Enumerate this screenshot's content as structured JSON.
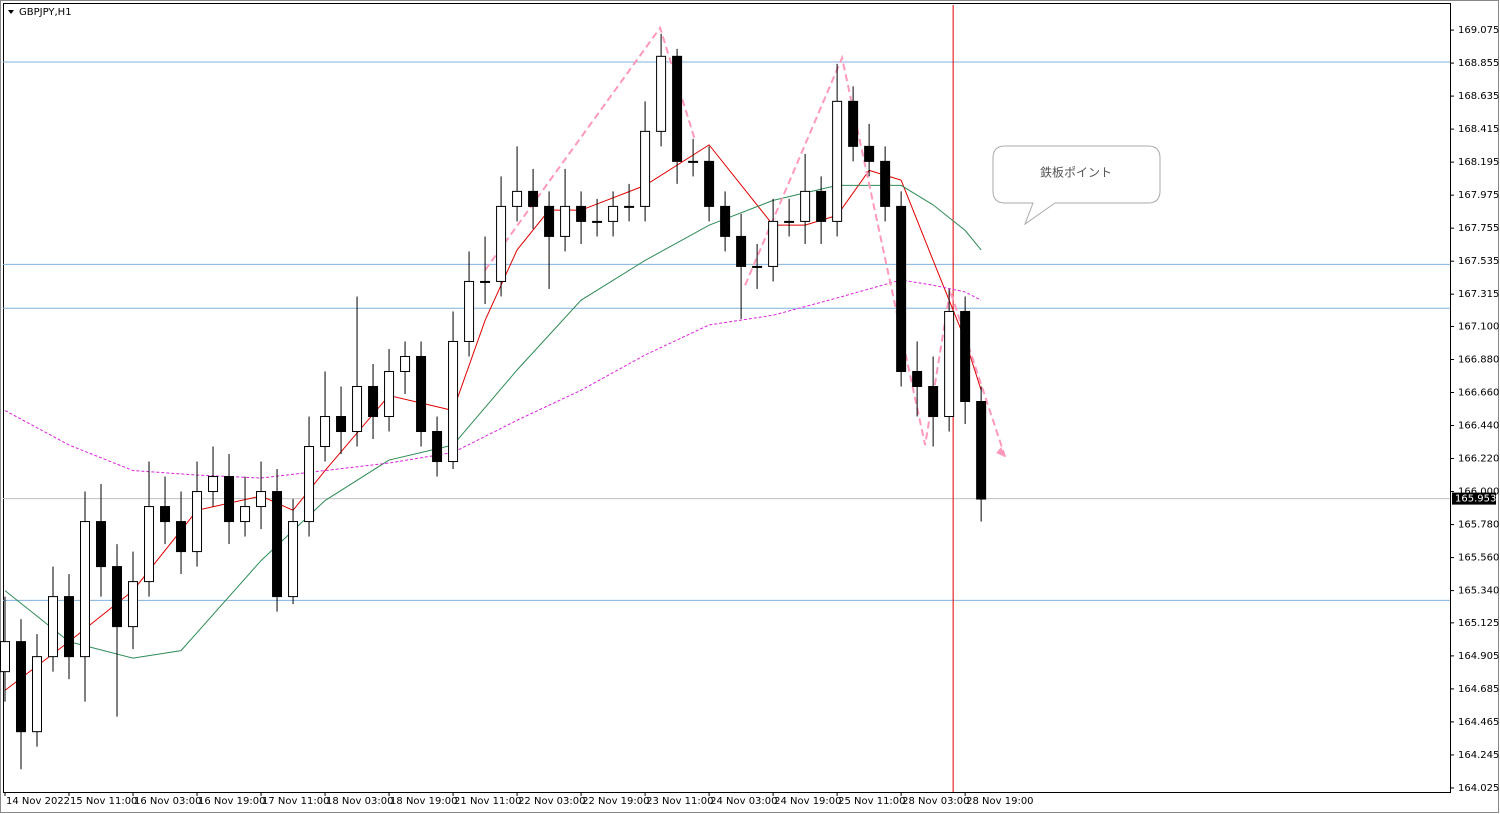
{
  "chart_data": {
    "type": "candlestick",
    "title": "GBPJPY,H1",
    "annotation": "鉄板ポイント",
    "up_color": "#ffffff",
    "down_color": "#000000",
    "xlim": [
      -0.125,
      90.3
    ],
    "ylim": [
      163.998,
      169.242
    ],
    "yticks": [
      164.025,
      164.245,
      164.465,
      164.685,
      164.905,
      165.125,
      {
        "value": 165.34,
        "label": "165.340"
      },
      {
        "value": 165.56,
        "label": "165.560"
      },
      {
        "value": 165.78,
        "label": "165.780"
      },
      {
        "value": 166.0,
        "label": "166.000"
      },
      {
        "value": 166.22,
        "label": "166.220"
      },
      {
        "value": 166.44,
        "label": "166.440"
      },
      {
        "value": 166.66,
        "label": "166.660"
      },
      {
        "value": 166.88,
        "label": "166.880"
      },
      {
        "value": 167.1,
        "label": "167.100"
      },
      167.315,
      167.535,
      167.755,
      167.975,
      168.195,
      168.415,
      168.635,
      168.855,
      169.075
    ],
    "xticks": [
      {
        "value": 0,
        "label": "14 Nov 2022"
      },
      {
        "value": 4,
        "label": "15 Nov 11:00"
      },
      {
        "value": 8,
        "label": "16 Nov 03:00"
      },
      {
        "value": 12,
        "label": "16 Nov 19:00"
      },
      {
        "value": 16,
        "label": "17 Nov 11:00"
      },
      {
        "value": 20,
        "label": "18 Nov 03:00"
      },
      {
        "value": 24,
        "label": "18 Nov 19:00"
      },
      {
        "value": 28,
        "label": "21 Nov 11:00"
      },
      {
        "value": 32,
        "label": "22 Nov 03:00"
      },
      {
        "value": 36,
        "label": "22 Nov 19:00"
      },
      {
        "value": 40,
        "label": "23 Nov 11:00"
      },
      {
        "value": 44,
        "label": "24 Nov 03:00"
      },
      {
        "value": 48,
        "label": "24 Nov 19:00"
      },
      {
        "value": 52,
        "label": "25 Nov 11:00"
      },
      {
        "value": 56,
        "label": "28 Nov 03:00"
      },
      {
        "value": 60,
        "label": "28 Nov 19:00"
      }
    ],
    "open": [
      164.8,
      165.0,
      164.4,
      164.9,
      165.3,
      164.9,
      165.8,
      165.5,
      165.1,
      165.4,
      165.9,
      165.8,
      165.6,
      166.0,
      166.1,
      165.8,
      165.9,
      166.0,
      165.3,
      165.8,
      166.3,
      166.5,
      166.4,
      166.7,
      166.5,
      166.8,
      166.9,
      166.4,
      166.2,
      167.0,
      167.4,
      167.4,
      167.9,
      168.0,
      167.9,
      167.7,
      167.9,
      167.8,
      167.8,
      167.9,
      167.9,
      168.4,
      168.9,
      168.2,
      168.2,
      167.9,
      167.7,
      167.5,
      167.5,
      167.8,
      167.8,
      168.0,
      167.8,
      168.6,
      168.3,
      168.2,
      167.9,
      166.8,
      166.7,
      166.5,
      167.2,
      166.6
    ],
    "high": [
      165.3,
      165.15,
      165.05,
      165.5,
      165.45,
      166.0,
      166.05,
      165.65,
      165.6,
      166.2,
      166.1,
      166.0,
      166.2,
      166.3,
      166.25,
      166.1,
      166.2,
      166.15,
      165.95,
      166.5,
      166.8,
      166.7,
      167.3,
      166.85,
      166.95,
      167.0,
      167.0,
      166.5,
      167.2,
      167.6,
      167.7,
      168.1,
      168.3,
      168.15,
      168.0,
      168.15,
      168.0,
      167.95,
      168.0,
      168.05,
      168.6,
      169.05,
      168.95,
      168.35,
      168.3,
      168.0,
      167.85,
      167.65,
      167.95,
      167.95,
      168.25,
      168.1,
      168.85,
      168.7,
      168.45,
      168.3,
      168.0,
      167.0,
      166.9,
      167.35,
      167.3,
      166.7
    ],
    "low": [
      164.6,
      164.15,
      164.3,
      164.8,
      164.75,
      164.6,
      165.3,
      164.5,
      164.95,
      165.3,
      165.65,
      165.45,
      165.5,
      165.9,
      165.65,
      165.7,
      165.75,
      165.2,
      165.25,
      165.7,
      166.2,
      166.25,
      166.3,
      166.35,
      166.4,
      166.65,
      166.3,
      166.1,
      166.15,
      166.9,
      167.25,
      167.3,
      167.8,
      167.75,
      167.35,
      167.6,
      167.65,
      167.7,
      167.7,
      167.8,
      167.8,
      168.3,
      168.05,
      168.1,
      167.8,
      167.6,
      167.15,
      167.35,
      167.4,
      167.7,
      167.65,
      167.65,
      167.7,
      168.2,
      168.1,
      167.8,
      166.7,
      166.5,
      166.3,
      166.4,
      166.45,
      165.8
    ],
    "close": [
      165.0,
      164.4,
      164.9,
      165.3,
      164.9,
      165.8,
      165.5,
      165.1,
      165.4,
      165.9,
      165.8,
      165.6,
      166.0,
      166.1,
      165.8,
      165.9,
      166.0,
      165.3,
      165.8,
      166.3,
      166.5,
      166.4,
      166.7,
      166.5,
      166.8,
      166.9,
      166.4,
      166.2,
      167.0,
      167.4,
      167.4,
      167.9,
      168.0,
      167.9,
      167.7,
      167.9,
      167.8,
      167.8,
      167.9,
      167.9,
      168.4,
      168.9,
      168.2,
      168.2,
      167.9,
      167.7,
      167.5,
      167.5,
      167.8,
      167.8,
      168.0,
      167.8,
      168.6,
      168.3,
      168.2,
      167.9,
      166.8,
      166.7,
      166.5,
      167.2,
      166.6,
      165.95
    ],
    "indicators": [
      {
        "color": "#e00000",
        "dashed": false,
        "x": [
          0,
          4,
          8,
          12,
          16,
          18,
          20,
          24,
          28,
          30,
          32,
          34,
          36,
          40,
          44,
          48,
          50,
          52,
          54,
          56,
          58,
          60,
          61
        ],
        "values": [
          164.675,
          165.0,
          165.34,
          165.875,
          165.97,
          165.875,
          166.14,
          166.64,
          166.54,
          167.14,
          167.61,
          167.875,
          167.875,
          168.04,
          168.31,
          167.775,
          167.775,
          167.84,
          168.14,
          168.075,
          167.54,
          167.01,
          166.675
        ]
      },
      {
        "color": "#2e8b57",
        "dashed": false,
        "x": [
          0,
          4,
          8,
          11,
          16,
          20,
          24,
          28,
          32,
          36,
          40,
          44,
          48,
          52,
          56,
          58,
          60,
          61
        ],
        "values": [
          165.34,
          165.0,
          164.89,
          164.94,
          165.54,
          165.94,
          166.21,
          166.31,
          166.81,
          167.275,
          167.54,
          167.775,
          167.94,
          168.04,
          168.04,
          167.91,
          167.74,
          167.61
        ]
      },
      {
        "color": "#e020e0",
        "dashed": true,
        "x": [
          0,
          4,
          8,
          12,
          16,
          20,
          24,
          28,
          32,
          36,
          40,
          44,
          48,
          52,
          56,
          58,
          60,
          61
        ],
        "values": [
          166.54,
          166.31,
          166.14,
          166.11,
          166.09,
          166.14,
          166.19,
          166.26,
          166.475,
          166.675,
          166.91,
          167.11,
          167.175,
          167.29,
          167.41,
          167.375,
          167.33,
          167.275
        ]
      }
    ],
    "pattern_lines": [
      {
        "color": "#ff99bb",
        "x": [
          30,
          40.94,
          43.125
        ],
        "values": [
          167.475,
          169.09,
          168.34
        ]
      },
      {
        "color": "#ff99bb",
        "x": [
          46.25,
          52.31,
          57.5,
          59.06,
          62.5
        ],
        "values": [
          167.375,
          168.89,
          166.31,
          167.34,
          166.23
        ]
      }
    ],
    "levels": [
      {
        "value": 168.862,
        "color": "#7fb2e0"
      },
      {
        "value": 167.514,
        "color": "#7fb2e0"
      },
      {
        "value": 167.221,
        "color": "#7fb2e0"
      },
      {
        "value": 165.275,
        "color": "#7fb2e0"
      }
    ],
    "vline": {
      "value": 59.25,
      "color": "#e00000"
    },
    "current_price": 165.953
  }
}
